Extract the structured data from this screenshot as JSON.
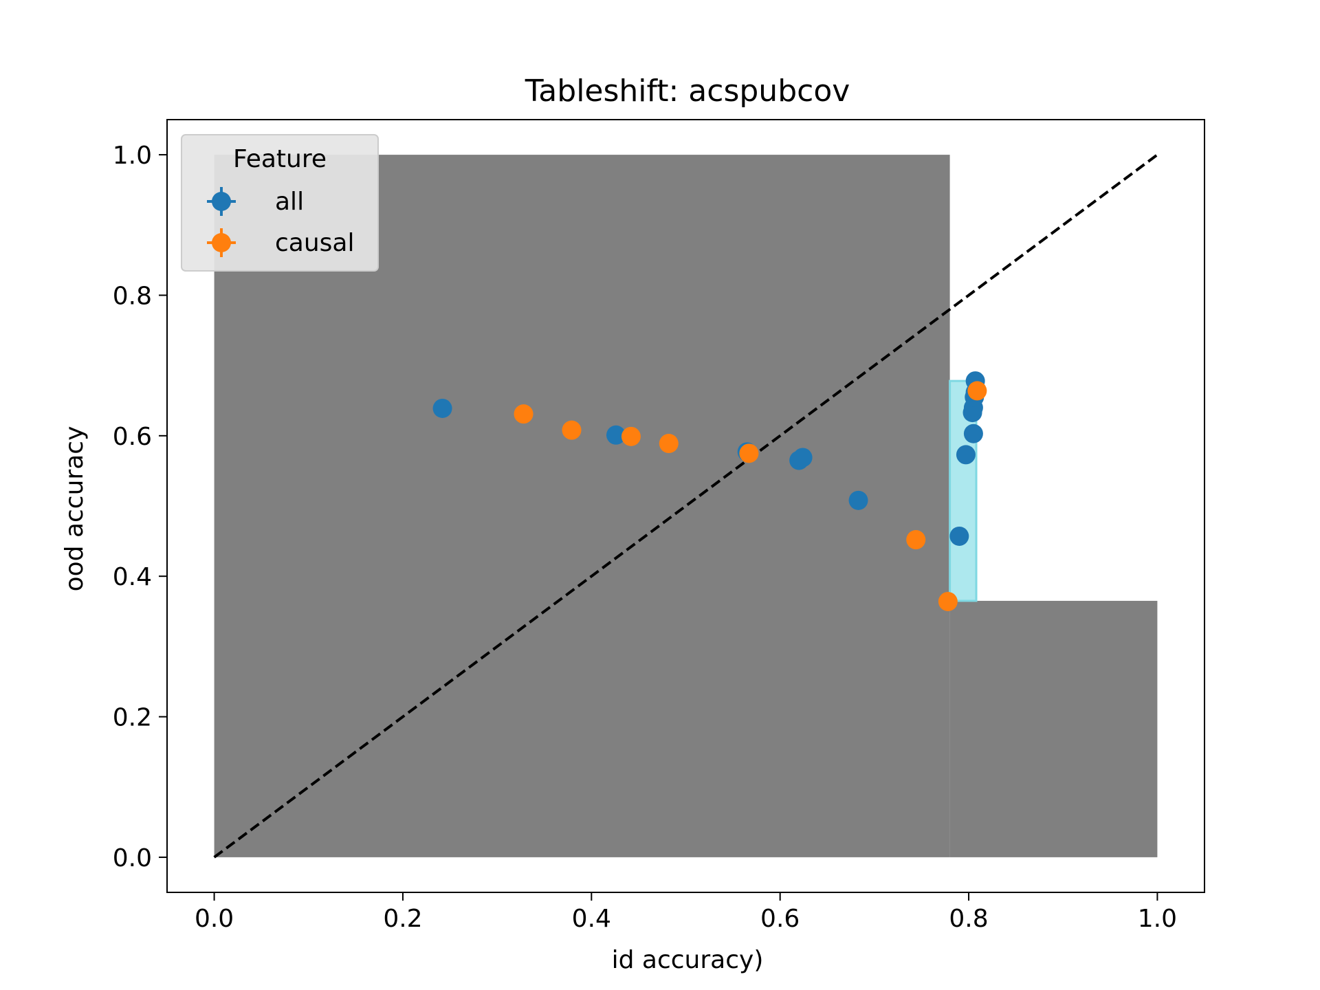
{
  "chart_data": {
    "type": "scatter",
    "title": "Tableshift: acspubcov",
    "xlabel": "id accuracy)",
    "ylabel": "ood accuracy",
    "xlim": [
      -0.05,
      1.05
    ],
    "ylim": [
      -0.05,
      1.05
    ],
    "xticks": [
      "0.0",
      "0.2",
      "0.4",
      "0.6",
      "0.8",
      "1.0"
    ],
    "yticks": [
      "0.0",
      "0.2",
      "0.4",
      "0.6",
      "0.8",
      "1.0"
    ],
    "xtick_values": [
      0,
      0.2,
      0.4,
      0.6,
      0.8,
      1.0
    ],
    "ytick_values": [
      0,
      0.2,
      0.4,
      0.6,
      0.8,
      1.0
    ],
    "diagonal": {
      "from": [
        0,
        0
      ],
      "to": [
        1,
        1
      ],
      "style": "dashed",
      "color": "#000000"
    },
    "regions": [
      {
        "name": "gray-region-upper",
        "x": [
          0,
          0.78
        ],
        "y": [
          0,
          1.0
        ],
        "color": "#808080"
      },
      {
        "name": "gray-region-lower",
        "x": [
          0.78,
          1.0
        ],
        "y": [
          0,
          0.365
        ],
        "color": "#808080"
      },
      {
        "name": "cyan-band",
        "x": [
          0.78,
          0.808
        ],
        "y": [
          0.365,
          0.678
        ],
        "color": "#ade8ee"
      }
    ],
    "legend": {
      "title": "Feature",
      "location": "upper-left",
      "entries": [
        {
          "label": "all",
          "color": "#1f77b4"
        },
        {
          "label": "causal",
          "color": "#ff7f0e"
        }
      ]
    },
    "series": [
      {
        "name": "all",
        "color": "#1f77b4",
        "points": [
          [
            0.242,
            0.639
          ],
          [
            0.426,
            0.601
          ],
          [
            0.565,
            0.577
          ],
          [
            0.62,
            0.565
          ],
          [
            0.624,
            0.569
          ],
          [
            0.683,
            0.508
          ],
          [
            0.79,
            0.457
          ],
          [
            0.797,
            0.573
          ],
          [
            0.805,
            0.603
          ],
          [
            0.804,
            0.633
          ],
          [
            0.805,
            0.64
          ],
          [
            0.806,
            0.655
          ],
          [
            0.807,
            0.662
          ],
          [
            0.807,
            0.678
          ]
        ]
      },
      {
        "name": "causal",
        "color": "#ff7f0e",
        "points": [
          [
            0.328,
            0.631
          ],
          [
            0.379,
            0.608
          ],
          [
            0.442,
            0.599
          ],
          [
            0.482,
            0.589
          ],
          [
            0.567,
            0.575
          ],
          [
            0.744,
            0.452
          ],
          [
            0.778,
            0.364
          ],
          [
            0.809,
            0.664
          ]
        ]
      }
    ]
  }
}
